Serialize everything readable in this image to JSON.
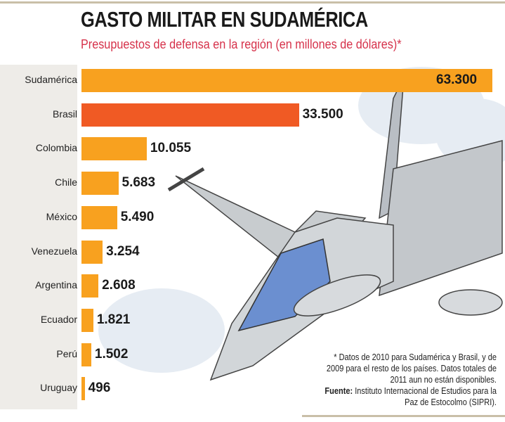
{
  "title": "GASTO MILITAR EN SUDAMÉRICA",
  "subtitle": "Presupuestos de defensa en la región (en millones de dólares)*",
  "colors": {
    "bar": "#f8a11f",
    "highlight": "#f05a24",
    "subtitle": "#d6314a",
    "label_bg": "#eeece8"
  },
  "chart_data": {
    "type": "bar",
    "orientation": "horizontal",
    "title": "GASTO MILITAR EN SUDAMÉRICA",
    "subtitle": "Presupuestos de defensa en la región (en millones de dólares)*",
    "categories": [
      "Sudamérica",
      "Brasil",
      "Colombia",
      "Chile",
      "México",
      "Venezuela",
      "Argentina",
      "Ecuador",
      "Perú",
      "Uruguay"
    ],
    "values": [
      63300,
      33500,
      10055,
      5683,
      5490,
      3254,
      2608,
      1821,
      1502,
      496
    ],
    "data_labels": [
      "63.300",
      "33.500",
      "10.055",
      "5.683",
      "5.490",
      "3.254",
      "2.608",
      "1.821",
      "1.502",
      "496"
    ],
    "highlighted": "Brasil",
    "grid": false
  },
  "footnote": {
    "note": "* Datos de 2010 para Sudamérica y Brasil, y de 2009 para el resto de los países. Datos totales de 2011 aun no están disponibles.",
    "source_label": "Fuente:",
    "source": "Instituto Internacional de Estudios para la Paz de Estocolmo (SIPRI)."
  }
}
